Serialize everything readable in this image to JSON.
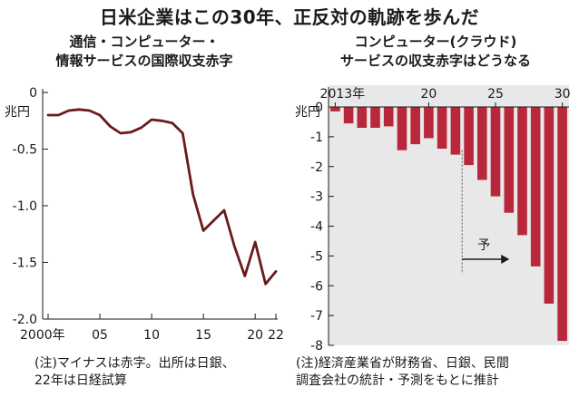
{
  "title": "日米企業はこの30年、正反対の軌跡を歩んだ",
  "chart_data": [
    {
      "type": "line",
      "title_lines": [
        "通信・コンピューター・",
        "情報サービスの国際収支赤字"
      ],
      "y_unit": "兆円",
      "x": [
        2000,
        2001,
        2002,
        2003,
        2004,
        2005,
        2006,
        2007,
        2008,
        2009,
        2010,
        2011,
        2012,
        2013,
        2014,
        2015,
        2016,
        2017,
        2018,
        2019,
        2020,
        2021,
        2022
      ],
      "values": [
        -0.2,
        -0.2,
        -0.16,
        -0.15,
        -0.16,
        -0.2,
        -0.3,
        -0.36,
        -0.35,
        -0.31,
        -0.24,
        -0.25,
        -0.27,
        -0.36,
        -0.9,
        -1.22,
        -1.13,
        -1.04,
        -1.36,
        -1.62,
        -1.32,
        -1.69,
        -1.58
      ],
      "ylim": [
        -2.0,
        0
      ],
      "y_ticks": [
        0,
        -0.5,
        -1.0,
        -1.5,
        -2.0
      ],
      "y_tick_labels": [
        "0",
        "-0.5",
        "-1.0",
        "-1.5",
        "-2.0"
      ],
      "x_tick_labels": [
        {
          "x": 2000,
          "label": "2000年"
        },
        {
          "x": 2005,
          "label": "05"
        },
        {
          "x": 2010,
          "label": "10"
        },
        {
          "x": 2015,
          "label": "15"
        },
        {
          "x": 2020,
          "label": "20"
        },
        {
          "x": 2022,
          "label": "22"
        }
      ],
      "line_color": "#6b1a1a",
      "grid": false,
      "note_lines": [
        "(注)マイナスは赤字。出所は日銀、",
        "22年は日経試算"
      ]
    },
    {
      "type": "bar",
      "title_lines": [
        "コンピューター(クラウド)",
        "サービスの収支赤字はどうなる"
      ],
      "y_unit": "兆円",
      "x": [
        2013,
        2014,
        2015,
        2016,
        2017,
        2018,
        2019,
        2020,
        2021,
        2022,
        2023,
        2024,
        2025,
        2026,
        2027,
        2028,
        2029,
        2030
      ],
      "values": [
        -0.15,
        -0.55,
        -0.7,
        -0.7,
        -0.65,
        -1.45,
        -1.25,
        -1.05,
        -1.4,
        -1.6,
        -1.95,
        -2.45,
        -3.0,
        -3.55,
        -4.3,
        -5.35,
        -6.6,
        -7.85
      ],
      "ylim": [
        -8,
        0
      ],
      "y_ticks": [
        0,
        -1,
        -2,
        -3,
        -4,
        -5,
        -6,
        -7,
        -8
      ],
      "y_tick_labels": [
        "0",
        "-1",
        "-2",
        "-3",
        "-4",
        "-5",
        "-6",
        "-7",
        "-8"
      ],
      "x_tick_labels": [
        {
          "x": 2013,
          "label": "2013年"
        },
        {
          "x": 2020,
          "label": "20"
        },
        {
          "x": 2025,
          "label": "25"
        },
        {
          "x": 2030,
          "label": "30"
        }
      ],
      "bar_color": "#b8283a",
      "background": "#e8e8e8",
      "forecast_start": 2022,
      "forecast_label": "予",
      "grid": false,
      "note_lines": [
        "(注)経済産業省が財務省、日銀、民間",
        "調査会社の統計・予測をもとに推計"
      ]
    }
  ]
}
